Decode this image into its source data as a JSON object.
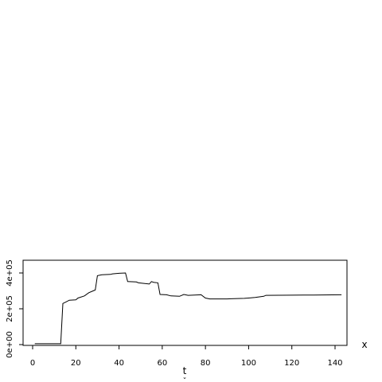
{
  "chart_data": {
    "type": "line",
    "xlabel": "t",
    "xlabel_sub": "ˇ",
    "side_label": "x",
    "xlim": [
      0,
      144
    ],
    "ylim": [
      0,
      420000
    ],
    "x_ticks": [
      0,
      20,
      40,
      60,
      80,
      100,
      120,
      140
    ],
    "x_tick_labels": [
      "0",
      "20",
      "40",
      "60",
      "80",
      "100",
      "120",
      "140"
    ],
    "y_ticks": [
      0,
      200000,
      400000
    ],
    "y_tick_labels": [
      "0e+00",
      "2e+05",
      "4e+05"
    ],
    "line_color": "#000000",
    "series": [
      {
        "x": [
          1,
          13,
          14,
          15,
          17,
          20,
          21,
          24,
          26,
          28,
          29,
          30,
          32,
          36,
          37,
          40,
          43,
          44,
          48,
          49,
          54,
          55,
          56,
          58,
          59,
          62,
          64,
          68,
          70,
          72,
          78,
          80,
          82,
          90,
          92,
          98,
          100,
          103,
          107,
          108,
          120,
          130,
          143
        ],
        "y": [
          5000,
          5000,
          230000,
          235000,
          248000,
          250000,
          260000,
          272000,
          290000,
          300000,
          305000,
          385000,
          390000,
          392000,
          395000,
          398000,
          400000,
          352000,
          350000,
          345000,
          338000,
          352000,
          348000,
          345000,
          280000,
          278000,
          272000,
          270000,
          280000,
          275000,
          278000,
          260000,
          255000,
          255000,
          256000,
          258000,
          260000,
          263000,
          270000,
          275000,
          276000,
          277000,
          278000
        ]
      }
    ]
  }
}
